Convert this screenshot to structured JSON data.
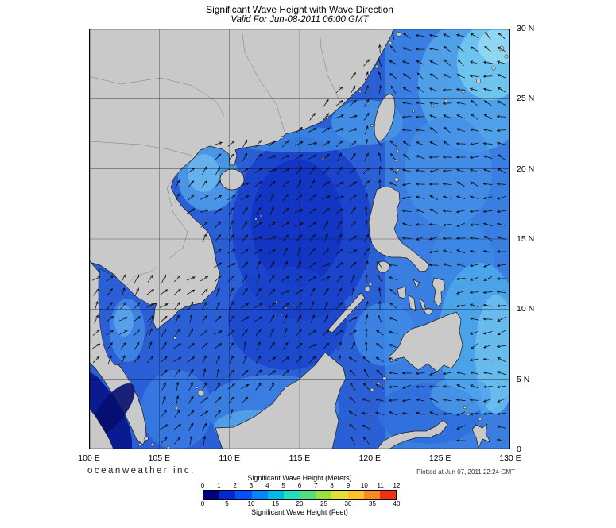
{
  "header": {
    "title": "Significant Wave Height with Wave Direction",
    "subtitle": "Valid For Jun-08-2011 06:00 GMT"
  },
  "map": {
    "lat_labels": [
      "30 N",
      "25 N",
      "20 N",
      "15 N",
      "10 N",
      "5 N",
      "0"
    ],
    "lon_labels": [
      "100 E",
      "105 E",
      "110 E",
      "115 E",
      "120 E",
      "125 E",
      "130 E"
    ]
  },
  "footer": {
    "branding": "oceanweather inc.",
    "plotted": "Plotted at Jun 07, 2011 22:24 GMT"
  },
  "legend": {
    "meters_label": "Significant Wave Height (Meters)",
    "feet_label": "Significant Wave Height (Feet)",
    "meters_ticks": [
      "0",
      "1",
      "2",
      "3",
      "4",
      "5",
      "6",
      "7",
      "8",
      "9",
      "10",
      "11",
      "12"
    ],
    "feet_ticks": [
      "0",
      "5",
      "10",
      "15",
      "20",
      "25",
      "30",
      "35",
      "40"
    ],
    "colors": [
      "#000082",
      "#0028d0",
      "#0050ff",
      "#0086ff",
      "#00b8f0",
      "#20e0c0",
      "#50e080",
      "#9ae040",
      "#e0e030",
      "#ffc028",
      "#ff8820",
      "#f03010"
    ]
  },
  "wave_field": {
    "spacing": 17,
    "arrow_length": 11,
    "arrow_color": "#0d0d0d"
  },
  "map_colors": {
    "ocean_base": "#2b5fd6",
    "ocean_deep": "#1a41cb",
    "ocean_pacific": "#3b7ee2",
    "ocean_dark_strait": "#0a1a90",
    "land": "#c9c9c9",
    "coastline": "#1b1b1b"
  }
}
